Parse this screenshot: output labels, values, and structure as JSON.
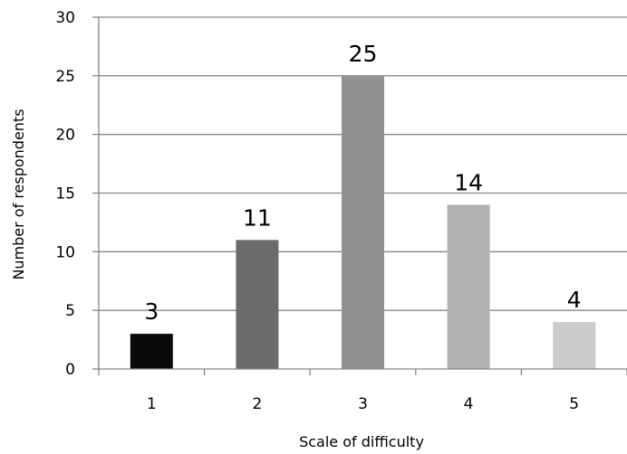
{
  "chart_data": {
    "type": "bar",
    "title": "",
    "xlabel": "Scale of difficulty",
    "ylabel": "Number of respondents",
    "categories": [
      "1",
      "2",
      "3",
      "4",
      "5"
    ],
    "values": [
      3,
      11,
      25,
      14,
      4
    ],
    "data_labels": [
      "3",
      "11",
      "25",
      "14",
      "4"
    ],
    "bar_colors": [
      "#0a0a0a",
      "#6a6b6a",
      "#929292",
      "#b1b2b1",
      "#cbcbcb"
    ],
    "ylim": [
      0,
      30
    ],
    "yticks": [
      0,
      5,
      10,
      15,
      20,
      25,
      30
    ],
    "ytick_labels": [
      "0",
      "5",
      "10",
      "15",
      "20",
      "25",
      "30"
    ],
    "grid": true,
    "grid_color": "#878787",
    "legend": "none"
  }
}
